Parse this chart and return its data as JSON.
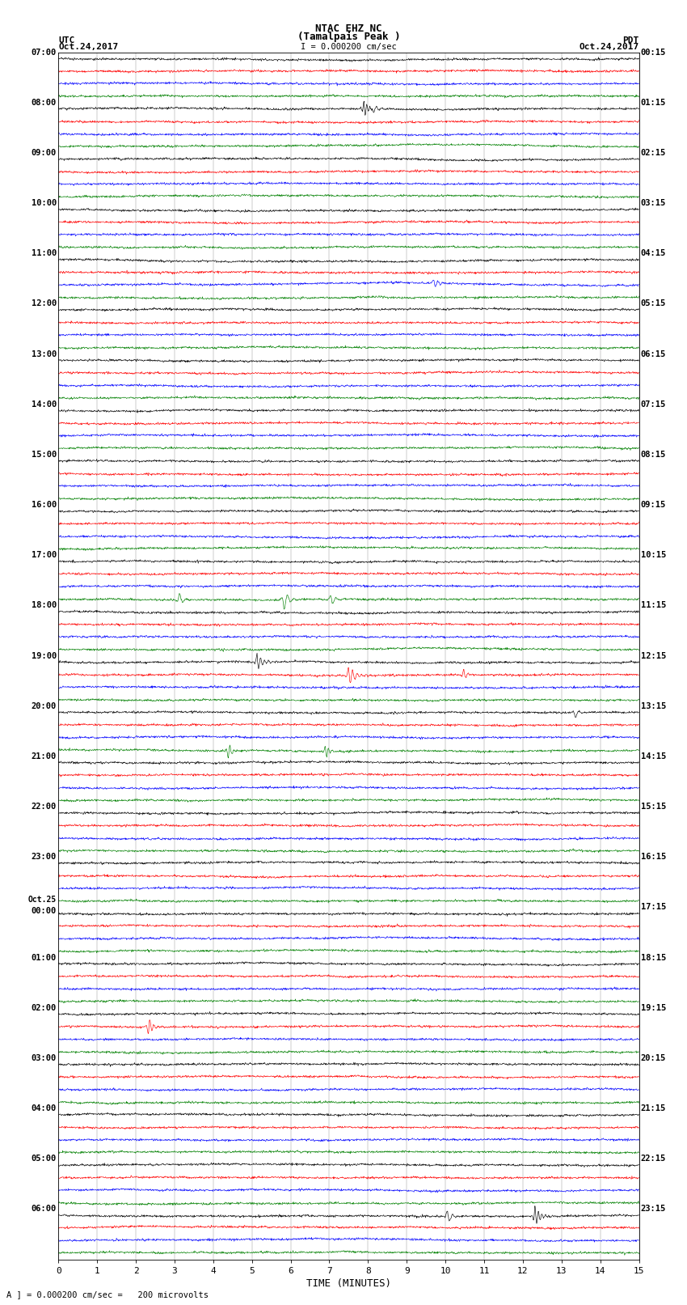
{
  "title_line1": "NTAC EHZ NC",
  "title_line2": "(Tamalpais Peak )",
  "title_line3": "I = 0.000200 cm/sec",
  "label_left_top1": "UTC",
  "label_left_top2": "Oct.24,2017",
  "label_right_top1": "PDT",
  "label_right_top2": "Oct.24,2017",
  "xlabel": "TIME (MINUTES)",
  "footer": "A ] = 0.000200 cm/sec =   200 microvolts",
  "time_min": 0,
  "time_max": 15,
  "num_rows": 96,
  "row_colors": [
    "black",
    "red",
    "blue",
    "green"
  ],
  "background_color": "white",
  "utc_labels": [
    "07:00",
    "",
    "",
    "",
    "08:00",
    "",
    "",
    "",
    "09:00",
    "",
    "",
    "",
    "10:00",
    "",
    "",
    "",
    "11:00",
    "",
    "",
    "",
    "12:00",
    "",
    "",
    "",
    "13:00",
    "",
    "",
    "",
    "14:00",
    "",
    "",
    "",
    "15:00",
    "",
    "",
    "",
    "16:00",
    "",
    "",
    "",
    "17:00",
    "",
    "",
    "",
    "18:00",
    "",
    "",
    "",
    "19:00",
    "",
    "",
    "",
    "20:00",
    "",
    "",
    "",
    "21:00",
    "",
    "",
    "",
    "22:00",
    "",
    "",
    "",
    "23:00",
    "",
    "",
    "",
    "Oct.25\n00:00",
    "",
    "",
    "",
    "01:00",
    "",
    "",
    "",
    "02:00",
    "",
    "",
    "",
    "03:00",
    "",
    "",
    "",
    "04:00",
    "",
    "",
    "",
    "05:00",
    "",
    "",
    "",
    "06:00",
    "",
    "",
    ""
  ],
  "pdt_labels": [
    "00:15",
    "",
    "",
    "",
    "01:15",
    "",
    "",
    "",
    "02:15",
    "",
    "",
    "",
    "03:15",
    "",
    "",
    "",
    "04:15",
    "",
    "",
    "",
    "05:15",
    "",
    "",
    "",
    "06:15",
    "",
    "",
    "",
    "07:15",
    "",
    "",
    "",
    "08:15",
    "",
    "",
    "",
    "09:15",
    "",
    "",
    "",
    "10:15",
    "",
    "",
    "",
    "11:15",
    "",
    "",
    "",
    "12:15",
    "",
    "",
    "",
    "13:15",
    "",
    "",
    "",
    "14:15",
    "",
    "",
    "",
    "15:15",
    "",
    "",
    "",
    "16:15",
    "",
    "",
    "",
    "17:15",
    "",
    "",
    "",
    "18:15",
    "",
    "",
    "",
    "19:15",
    "",
    "",
    "",
    "20:15",
    "",
    "",
    "",
    "21:15",
    "",
    "",
    "",
    "22:15",
    "",
    "",
    "",
    "23:15",
    "",
    "",
    ""
  ],
  "noise_amplitude": 0.07,
  "grid_color": "#888888",
  "grid_lw": 0.3,
  "trace_lw": 0.45,
  "font_size_labels": 7.5,
  "font_size_title": 9,
  "font_size_footer": 7.5
}
